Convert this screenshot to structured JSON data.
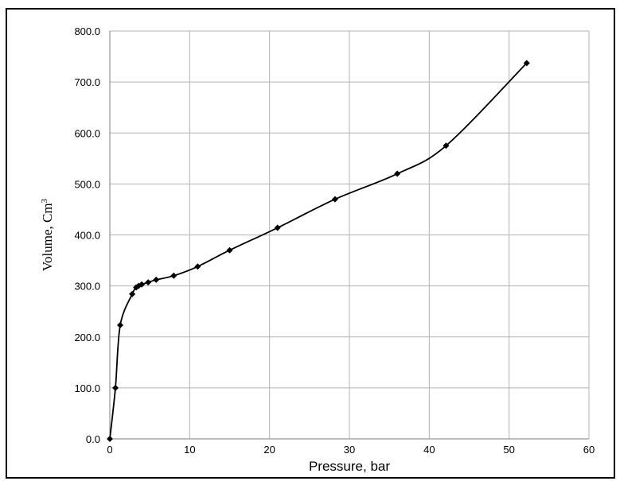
{
  "chart_data": {
    "type": "scatter",
    "title": "",
    "xlabel": "Pressure,  bar",
    "ylabel": "Volume, Cm",
    "ylabel_superscript": "3",
    "xlim": [
      0,
      60
    ],
    "ylim": [
      0,
      800
    ],
    "x_ticks": [
      "0",
      "10",
      "20",
      "30",
      "40",
      "50",
      "60"
    ],
    "y_ticks": [
      "0.0",
      "100.0",
      "200.0",
      "300.0",
      "400.0",
      "500.0",
      "600.0",
      "700.0",
      "800.0"
    ],
    "grid": true,
    "legend": "none",
    "series": [
      {
        "color": "#000000",
        "marker": "diamond",
        "smooth": true,
        "x": [
          0,
          0.7,
          1.3,
          2.8,
          3.3,
          3.6,
          4,
          4.8,
          5.8,
          8,
          11,
          15,
          21,
          28.2,
          36,
          42.1,
          52.2
        ],
        "y": [
          0,
          100,
          223,
          284,
          297,
          300,
          303,
          307,
          312,
          320,
          338,
          370,
          414,
          470,
          520,
          575,
          737
        ]
      }
    ]
  }
}
